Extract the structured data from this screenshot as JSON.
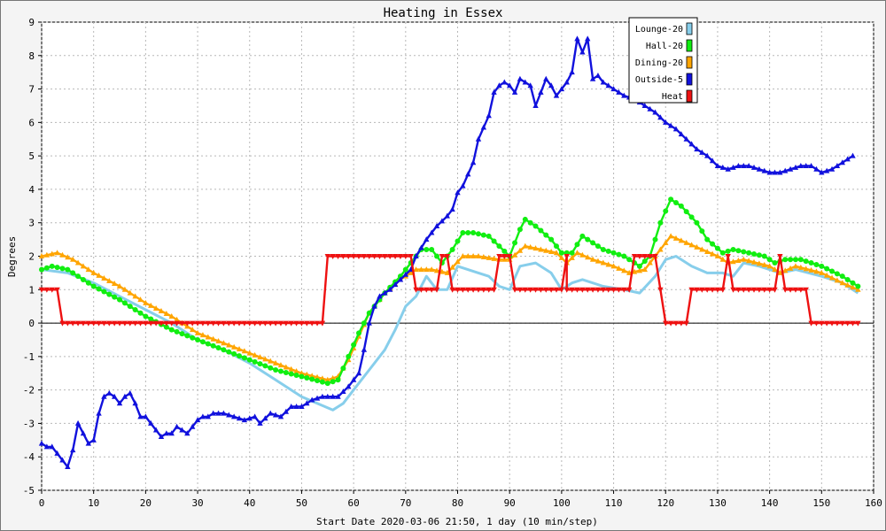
{
  "chart_data": {
    "type": "line",
    "title": "Heating in Essex",
    "xlabel": "Start Date 2020-03-06 21:50, 1 day (10 min/step)",
    "ylabel": "Degrees",
    "xlim": [
      0,
      160
    ],
    "ylim": [
      -5,
      9
    ],
    "xticks": [
      0,
      10,
      20,
      30,
      40,
      50,
      60,
      70,
      80,
      90,
      100,
      110,
      120,
      130,
      140,
      150,
      160
    ],
    "yticks": [
      -5,
      -4,
      -3,
      -2,
      -1,
      0,
      1,
      2,
      3,
      4,
      5,
      6,
      7,
      8,
      9
    ],
    "grid": true,
    "legend_position": "top-right",
    "series": [
      {
        "name": "Lounge-20",
        "color": "#87ceeb",
        "marker": "none",
        "points": [
          [
            0,
            1.6
          ],
          [
            5,
            1.5
          ],
          [
            10,
            1.2
          ],
          [
            15,
            0.8
          ],
          [
            20,
            0.4
          ],
          [
            25,
            0.0
          ],
          [
            30,
            -0.5
          ],
          [
            35,
            -0.8
          ],
          [
            40,
            -1.2
          ],
          [
            45,
            -1.7
          ],
          [
            50,
            -2.2
          ],
          [
            53,
            -2.4
          ],
          [
            56,
            -2.6
          ],
          [
            58,
            -2.4
          ],
          [
            60,
            -2.0
          ],
          [
            63,
            -1.4
          ],
          [
            66,
            -0.8
          ],
          [
            68,
            -0.2
          ],
          [
            70,
            0.5
          ],
          [
            72,
            0.8
          ],
          [
            74,
            1.4
          ],
          [
            76,
            1.0
          ],
          [
            78,
            1.0
          ],
          [
            80,
            1.7
          ],
          [
            84,
            1.5
          ],
          [
            86,
            1.4
          ],
          [
            88,
            1.1
          ],
          [
            90,
            1.0
          ],
          [
            92,
            1.7
          ],
          [
            95,
            1.8
          ],
          [
            98,
            1.5
          ],
          [
            100,
            1.0
          ],
          [
            102,
            1.2
          ],
          [
            104,
            1.3
          ],
          [
            108,
            1.1
          ],
          [
            112,
            1.0
          ],
          [
            115,
            0.9
          ],
          [
            118,
            1.4
          ],
          [
            120,
            1.9
          ],
          [
            122,
            2.0
          ],
          [
            125,
            1.7
          ],
          [
            128,
            1.5
          ],
          [
            131,
            1.5
          ],
          [
            133,
            1.4
          ],
          [
            135,
            1.8
          ],
          [
            138,
            1.7
          ],
          [
            140,
            1.6
          ],
          [
            142,
            1.5
          ],
          [
            145,
            1.6
          ],
          [
            150,
            1.4
          ],
          [
            154,
            1.2
          ],
          [
            157,
            0.9
          ]
        ]
      },
      {
        "name": "Hall-20",
        "color": "#11ee11",
        "marker": "dot",
        "points": [
          [
            0,
            1.6
          ],
          [
            2,
            1.7
          ],
          [
            5,
            1.6
          ],
          [
            10,
            1.1
          ],
          [
            15,
            0.7
          ],
          [
            20,
            0.2
          ],
          [
            25,
            -0.2
          ],
          [
            30,
            -0.5
          ],
          [
            35,
            -0.8
          ],
          [
            40,
            -1.1
          ],
          [
            45,
            -1.4
          ],
          [
            50,
            -1.6
          ],
          [
            55,
            -1.8
          ],
          [
            57,
            -1.7
          ],
          [
            59,
            -1.0
          ],
          [
            61,
            -0.3
          ],
          [
            63,
            0.3
          ],
          [
            66,
            0.9
          ],
          [
            69,
            1.4
          ],
          [
            71,
            1.8
          ],
          [
            73,
            2.2
          ],
          [
            75,
            2.2
          ],
          [
            77,
            1.8
          ],
          [
            79,
            2.2
          ],
          [
            81,
            2.7
          ],
          [
            83,
            2.7
          ],
          [
            86,
            2.6
          ],
          [
            88,
            2.3
          ],
          [
            90,
            2.0
          ],
          [
            92,
            2.8
          ],
          [
            93,
            3.1
          ],
          [
            95,
            2.9
          ],
          [
            98,
            2.5
          ],
          [
            100,
            2.1
          ],
          [
            102,
            2.1
          ],
          [
            104,
            2.6
          ],
          [
            106,
            2.4
          ],
          [
            108,
            2.2
          ],
          [
            112,
            2.0
          ],
          [
            115,
            1.7
          ],
          [
            117,
            2.0
          ],
          [
            119,
            3.0
          ],
          [
            121,
            3.7
          ],
          [
            123,
            3.5
          ],
          [
            126,
            3.0
          ],
          [
            128,
            2.5
          ],
          [
            131,
            2.1
          ],
          [
            133,
            2.2
          ],
          [
            136,
            2.1
          ],
          [
            139,
            2.0
          ],
          [
            141,
            1.8
          ],
          [
            143,
            1.9
          ],
          [
            146,
            1.9
          ],
          [
            150,
            1.7
          ],
          [
            154,
            1.4
          ],
          [
            157,
            1.1
          ]
        ]
      },
      {
        "name": "Dining-20",
        "color": "#ffa500",
        "marker": "triangle",
        "points": [
          [
            0,
            2.0
          ],
          [
            3,
            2.1
          ],
          [
            6,
            1.9
          ],
          [
            10,
            1.5
          ],
          [
            15,
            1.1
          ],
          [
            20,
            0.6
          ],
          [
            25,
            0.2
          ],
          [
            30,
            -0.3
          ],
          [
            35,
            -0.6
          ],
          [
            40,
            -0.9
          ],
          [
            45,
            -1.2
          ],
          [
            50,
            -1.5
          ],
          [
            55,
            -1.7
          ],
          [
            57,
            -1.6
          ],
          [
            59,
            -1.1
          ],
          [
            61,
            -0.4
          ],
          [
            63,
            0.3
          ],
          [
            66,
            0.9
          ],
          [
            69,
            1.3
          ],
          [
            72,
            1.6
          ],
          [
            75,
            1.6
          ],
          [
            78,
            1.5
          ],
          [
            81,
            2.0
          ],
          [
            84,
            2.0
          ],
          [
            88,
            1.9
          ],
          [
            90,
            1.9
          ],
          [
            93,
            2.3
          ],
          [
            96,
            2.2
          ],
          [
            99,
            2.1
          ],
          [
            101,
            1.8
          ],
          [
            103,
            2.1
          ],
          [
            106,
            1.9
          ],
          [
            110,
            1.7
          ],
          [
            113,
            1.5
          ],
          [
            116,
            1.6
          ],
          [
            118,
            2.0
          ],
          [
            121,
            2.6
          ],
          [
            124,
            2.4
          ],
          [
            127,
            2.2
          ],
          [
            130,
            2.0
          ],
          [
            132,
            1.8
          ],
          [
            135,
            1.9
          ],
          [
            140,
            1.7
          ],
          [
            142,
            1.5
          ],
          [
            145,
            1.7
          ],
          [
            150,
            1.5
          ],
          [
            154,
            1.2
          ],
          [
            157,
            1.0
          ]
        ]
      },
      {
        "name": "Outside-5",
        "color": "#1111dd",
        "marker": "triangle",
        "points": [
          [
            0,
            -3.6
          ],
          [
            1,
            -3.7
          ],
          [
            2,
            -3.7
          ],
          [
            3,
            -3.9
          ],
          [
            4,
            -4.1
          ],
          [
            5,
            -4.3
          ],
          [
            6,
            -3.8
          ],
          [
            7,
            -3.0
          ],
          [
            8,
            -3.3
          ],
          [
            9,
            -3.6
          ],
          [
            10,
            -3.5
          ],
          [
            11,
            -2.7
          ],
          [
            12,
            -2.2
          ],
          [
            13,
            -2.1
          ],
          [
            14,
            -2.2
          ],
          [
            15,
            -2.4
          ],
          [
            16,
            -2.2
          ],
          [
            17,
            -2.1
          ],
          [
            18,
            -2.4
          ],
          [
            19,
            -2.8
          ],
          [
            20,
            -2.8
          ],
          [
            21,
            -3.0
          ],
          [
            22,
            -3.2
          ],
          [
            23,
            -3.4
          ],
          [
            24,
            -3.3
          ],
          [
            25,
            -3.3
          ],
          [
            26,
            -3.1
          ],
          [
            27,
            -3.2
          ],
          [
            28,
            -3.3
          ],
          [
            29,
            -3.1
          ],
          [
            30,
            -2.9
          ],
          [
            31,
            -2.8
          ],
          [
            32,
            -2.8
          ],
          [
            33,
            -2.7
          ],
          [
            35,
            -2.7
          ],
          [
            37,
            -2.8
          ],
          [
            39,
            -2.9
          ],
          [
            41,
            -2.8
          ],
          [
            42,
            -3.0
          ],
          [
            44,
            -2.7
          ],
          [
            46,
            -2.8
          ],
          [
            48,
            -2.5
          ],
          [
            50,
            -2.5
          ],
          [
            52,
            -2.3
          ],
          [
            54,
            -2.2
          ],
          [
            57,
            -2.2
          ],
          [
            59,
            -1.9
          ],
          [
            61,
            -1.5
          ],
          [
            62,
            -0.8
          ],
          [
            63,
            0.0
          ],
          [
            64,
            0.5
          ],
          [
            65,
            0.8
          ],
          [
            67,
            1.0
          ],
          [
            69,
            1.3
          ],
          [
            71,
            1.6
          ],
          [
            72,
            2.0
          ],
          [
            74,
            2.5
          ],
          [
            76,
            2.9
          ],
          [
            78,
            3.2
          ],
          [
            79,
            3.4
          ],
          [
            80,
            3.9
          ],
          [
            81,
            4.1
          ],
          [
            83,
            4.8
          ],
          [
            84,
            5.5
          ],
          [
            86,
            6.2
          ],
          [
            87,
            6.9
          ],
          [
            88,
            7.1
          ],
          [
            89,
            7.2
          ],
          [
            90,
            7.1
          ],
          [
            91,
            6.9
          ],
          [
            92,
            7.3
          ],
          [
            93,
            7.2
          ],
          [
            94,
            7.1
          ],
          [
            95,
            6.5
          ],
          [
            96,
            6.9
          ],
          [
            97,
            7.3
          ],
          [
            98,
            7.1
          ],
          [
            99,
            6.8
          ],
          [
            100,
            7.0
          ],
          [
            101,
            7.2
          ],
          [
            102,
            7.5
          ],
          [
            103,
            8.5
          ],
          [
            104,
            8.1
          ],
          [
            105,
            8.5
          ],
          [
            106,
            7.3
          ],
          [
            107,
            7.4
          ],
          [
            108,
            7.2
          ],
          [
            110,
            7.0
          ],
          [
            112,
            6.8
          ],
          [
            114,
            6.7
          ],
          [
            116,
            6.5
          ],
          [
            118,
            6.3
          ],
          [
            120,
            6.0
          ],
          [
            122,
            5.8
          ],
          [
            124,
            5.5
          ],
          [
            126,
            5.2
          ],
          [
            128,
            5.0
          ],
          [
            130,
            4.7
          ],
          [
            132,
            4.6
          ],
          [
            134,
            4.7
          ],
          [
            136,
            4.7
          ],
          [
            138,
            4.6
          ],
          [
            140,
            4.5
          ],
          [
            142,
            4.5
          ],
          [
            144,
            4.6
          ],
          [
            146,
            4.7
          ],
          [
            148,
            4.7
          ],
          [
            150,
            4.5
          ],
          [
            152,
            4.6
          ],
          [
            154,
            4.8
          ],
          [
            156,
            5.0
          ]
        ]
      },
      {
        "name": "Heat",
        "color": "#ee1111",
        "marker": "down-triangle",
        "step": true,
        "points": [
          [
            0,
            1
          ],
          [
            3,
            1
          ],
          [
            4,
            0
          ],
          [
            54,
            0
          ],
          [
            55,
            2
          ],
          [
            71,
            2
          ],
          [
            72,
            1
          ],
          [
            76,
            1
          ],
          [
            77,
            2
          ],
          [
            78,
            2
          ],
          [
            79,
            1
          ],
          [
            87,
            1
          ],
          [
            88,
            2
          ],
          [
            90,
            2
          ],
          [
            91,
            1
          ],
          [
            100,
            1
          ],
          [
            101,
            2
          ],
          [
            101,
            1
          ],
          [
            113,
            1
          ],
          [
            114,
            2
          ],
          [
            118,
            2
          ],
          [
            119,
            1
          ],
          [
            120,
            0
          ],
          [
            124,
            0
          ],
          [
            125,
            1
          ],
          [
            131,
            1
          ],
          [
            132,
            2
          ],
          [
            133,
            1
          ],
          [
            141,
            1
          ],
          [
            142,
            2
          ],
          [
            143,
            1
          ],
          [
            147,
            1
          ],
          [
            148,
            0
          ],
          [
            157,
            0
          ]
        ]
      }
    ]
  }
}
